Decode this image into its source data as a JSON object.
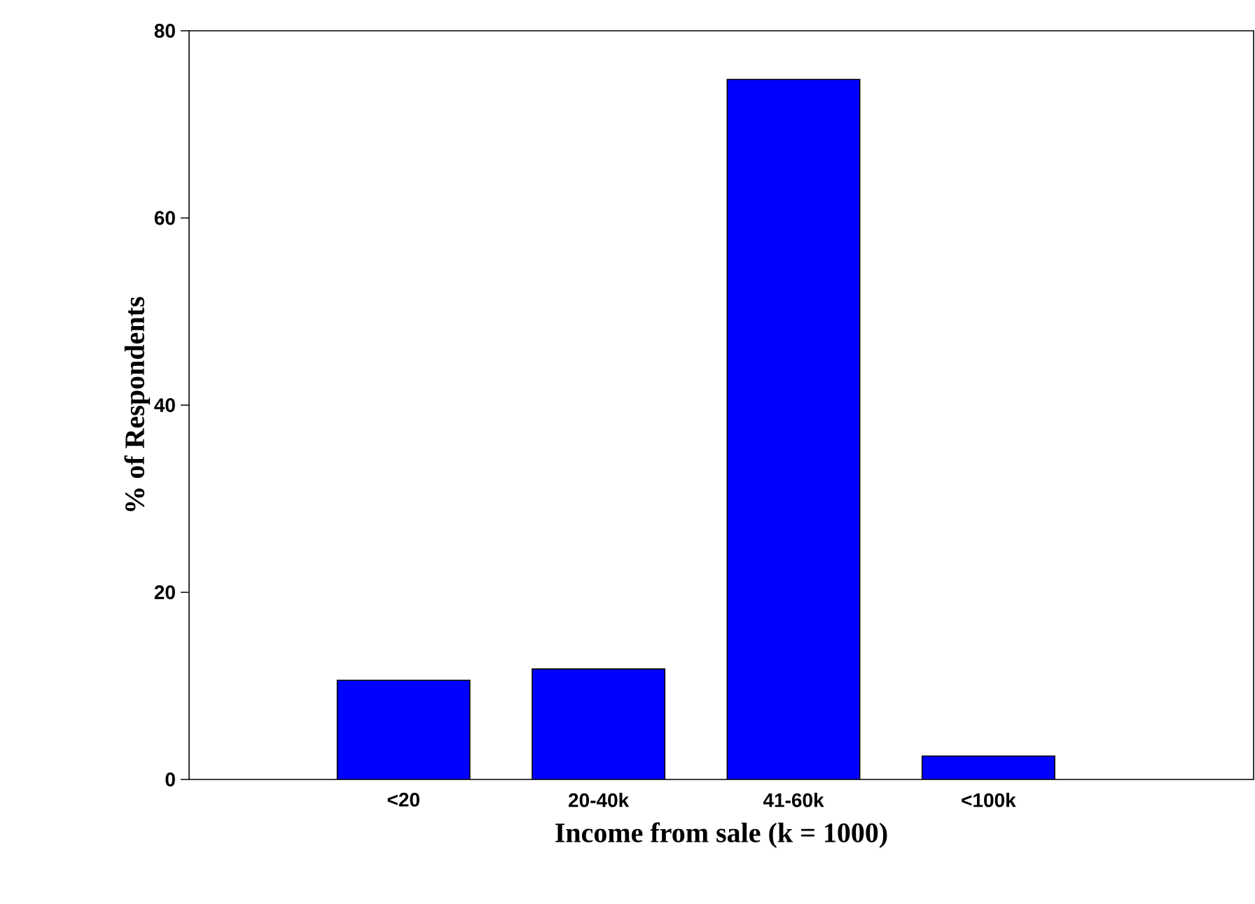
{
  "chart_data": {
    "type": "bar",
    "xlabel": "Income from sale (k = 1000)",
    "ylabel": "% of Respondents",
    "categories": [
      "<20",
      "20-40k",
      "41-60k",
      "<100k"
    ],
    "values": [
      10.6,
      11.8,
      74.8,
      2.5
    ],
    "color": "#0000ff",
    "ylim": [
      0,
      80
    ],
    "yticks": [
      0,
      20,
      40,
      60,
      80
    ],
    "grid": false
  }
}
